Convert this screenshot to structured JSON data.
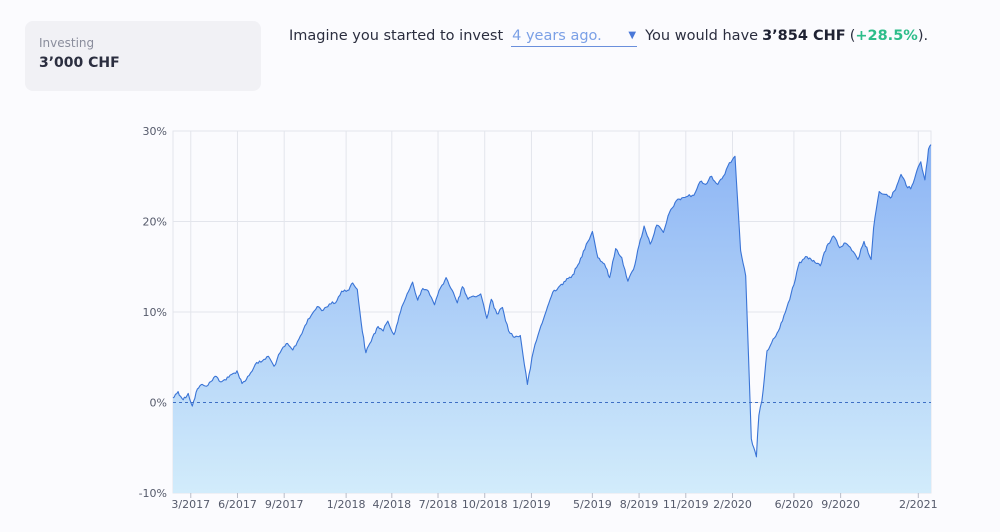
{
  "investing": {
    "label": "Investing",
    "amount": "3’000 CHF"
  },
  "sentence": {
    "prefix": "Imagine you started to invest",
    "period": "4 years ago.",
    "middle": "You would have",
    "amount": "3’854 CHF",
    "paren_open": "(",
    "percent": "+28.5%",
    "paren_close": ")."
  },
  "colors": {
    "line": "#3a74d6",
    "fill_top": "#8cb4f4",
    "fill_bottom": "#d2ecfb",
    "positive": "#2dbd8a"
  },
  "chart_data": {
    "type": "area",
    "ylim": [
      -10,
      30
    ],
    "yticks": [
      30,
      20,
      10,
      0,
      -10
    ],
    "ytick_labels": [
      "30%",
      "20%",
      "10%",
      "0%",
      "-10%"
    ],
    "xlim": [
      "2017-01-25",
      "2021-02-26"
    ],
    "xticks": [
      "2017-03",
      "2017-06",
      "2017-09",
      "2018-01",
      "2018-04",
      "2018-07",
      "2018-10",
      "2019-01",
      "2019-05",
      "2019-08",
      "2019-11",
      "2020-02",
      "2020-06",
      "2020-09",
      "2021-02"
    ],
    "xtick_labels": [
      "3/2017",
      "6/2017",
      "9/2017",
      "1/2018",
      "4/2018",
      "7/2018",
      "10/2018",
      "1/2019",
      "5/2019",
      "8/2019",
      "11/2019",
      "2/2020",
      "6/2020",
      "9/2020",
      "2/2021"
    ],
    "baseline": 0,
    "series": [
      {
        "x": [
          "2017-01-25",
          "2017-02-04",
          "2017-02-14",
          "2017-02-24",
          "2017-03-04",
          "2017-03-14",
          "2017-03-24",
          "2017-04-04",
          "2017-04-18",
          "2017-05-01",
          "2017-05-15",
          "2017-05-31",
          "2017-06-10",
          "2017-06-24",
          "2017-07-06",
          "2017-07-20",
          "2017-08-01",
          "2017-08-12",
          "2017-08-24",
          "2017-09-05",
          "2017-09-18",
          "2017-09-30",
          "2017-10-12",
          "2017-10-24",
          "2017-11-05",
          "2017-11-17",
          "2017-11-29",
          "2017-12-11",
          "2017-12-23",
          "2018-01-04",
          "2018-01-14",
          "2018-01-23",
          "2018-02-02",
          "2018-02-09",
          "2018-02-22",
          "2018-03-05",
          "2018-03-15",
          "2018-03-24",
          "2018-04-05",
          "2018-04-18",
          "2018-05-01",
          "2018-05-12",
          "2018-05-22",
          "2018-06-01",
          "2018-06-12",
          "2018-06-24",
          "2018-07-06",
          "2018-07-17",
          "2018-07-29",
          "2018-08-08",
          "2018-08-18",
          "2018-08-29",
          "2018-09-11",
          "2018-09-23",
          "2018-10-05",
          "2018-10-14",
          "2018-10-25",
          "2018-11-05",
          "2018-11-17",
          "2018-11-29",
          "2018-12-10",
          "2018-12-24",
          "2019-01-05",
          "2019-01-17",
          "2019-01-30",
          "2019-02-12",
          "2019-02-26",
          "2019-03-09",
          "2019-03-23",
          "2019-04-05",
          "2019-04-19",
          "2019-05-01",
          "2019-05-12",
          "2019-05-25",
          "2019-06-04",
          "2019-06-16",
          "2019-06-28",
          "2019-07-10",
          "2019-07-21",
          "2019-08-01",
          "2019-08-11",
          "2019-08-23",
          "2019-09-05",
          "2019-09-18",
          "2019-09-30",
          "2019-10-11",
          "2019-10-24",
          "2019-11-05",
          "2019-11-17",
          "2019-11-29",
          "2019-12-10",
          "2019-12-22",
          "2020-01-03",
          "2020-01-14",
          "2020-01-26",
          "2020-02-06",
          "2020-02-17",
          "2020-02-27",
          "2020-03-09",
          "2020-03-19",
          "2020-03-24",
          "2020-03-30",
          "2020-04-09",
          "2020-04-21",
          "2020-05-04",
          "2020-05-18",
          "2020-06-01",
          "2020-06-12",
          "2020-06-27",
          "2020-07-10",
          "2020-07-23",
          "2020-08-05",
          "2020-08-18",
          "2020-08-30",
          "2020-09-11",
          "2020-09-23",
          "2020-10-05",
          "2020-10-17",
          "2020-10-31",
          "2020-11-05",
          "2020-11-16",
          "2020-11-28",
          "2020-12-08",
          "2020-12-18",
          "2020-12-29",
          "2021-01-08",
          "2021-01-17",
          "2021-01-27",
          "2021-02-06",
          "2021-02-14",
          "2021-02-21",
          "2021-02-26"
        ],
        "values": [
          0.5,
          1.2,
          0.3,
          1.0,
          -0.4,
          1.5,
          2.0,
          1.9,
          2.9,
          2.3,
          2.8,
          3.5,
          2.1,
          3.0,
          4.2,
          4.6,
          5.1,
          4.0,
          5.5,
          6.5,
          5.8,
          7.0,
          8.5,
          9.6,
          10.6,
          10.2,
          10.9,
          11.0,
          12.3,
          12.4,
          13.2,
          12.5,
          7.8,
          5.5,
          7.2,
          8.4,
          7.9,
          9.0,
          7.5,
          10.0,
          12.0,
          13.3,
          11.3,
          12.6,
          12.3,
          10.8,
          12.7,
          13.8,
          12.4,
          11.0,
          12.8,
          11.4,
          11.7,
          12.0,
          9.3,
          11.4,
          9.8,
          10.5,
          7.9,
          7.2,
          7.4,
          2.0,
          5.7,
          8.0,
          10.1,
          12.2,
          12.9,
          13.4,
          14.1,
          15.4,
          17.5,
          18.9,
          16.0,
          15.3,
          13.8,
          17.0,
          16.0,
          13.4,
          14.7,
          17.4,
          19.5,
          17.5,
          19.6,
          18.8,
          21.0,
          22.1,
          22.6,
          22.8,
          22.9,
          24.4,
          24.1,
          25.0,
          24.1,
          25.0,
          26.5,
          27.2,
          16.8,
          14.0,
          -4.0,
          -6.0,
          -1.4,
          0.2,
          5.7,
          7.0,
          8.2,
          10.5,
          13.0,
          15.5,
          16.1,
          15.7,
          15.1,
          17.3,
          18.4,
          17.1,
          17.6,
          16.8,
          15.8,
          17.8,
          15.8,
          19.3,
          23.3,
          23.0,
          22.6,
          23.5,
          25.2,
          24.0,
          23.6,
          25.2,
          26.6,
          24.6,
          28.0,
          28.5
        ]
      }
    ]
  }
}
